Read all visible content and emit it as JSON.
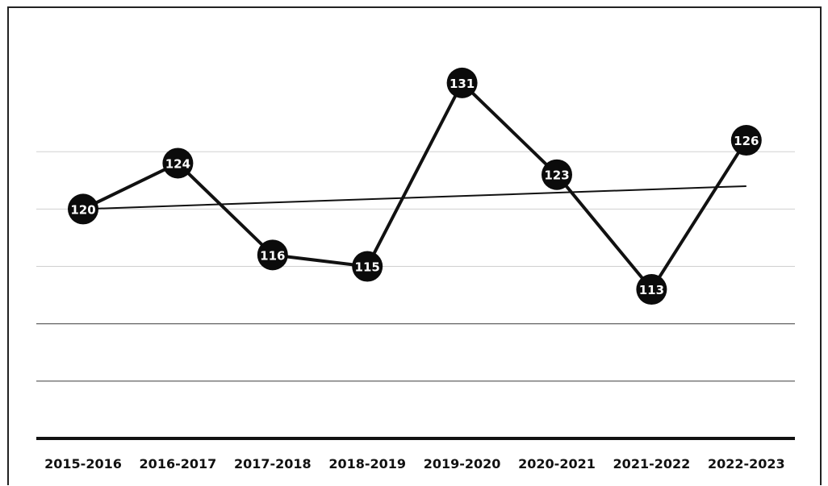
{
  "chart_data": {
    "type": "line",
    "categories": [
      "2015-2016",
      "2016-2017",
      "2017-2018",
      "2018-2019",
      "2019-2020",
      "2020-2021",
      "2021-2022",
      "2022-2023"
    ],
    "series": [
      {
        "values": [
          120,
          124,
          116,
          115,
          131,
          123,
          113,
          126
        ],
        "data_labels": [
          "120",
          "124",
          "116",
          "115",
          "131",
          "123",
          "113",
          "126"
        ]
      }
    ],
    "trendline": {
      "type": "linear",
      "visible": true
    },
    "title": "",
    "xlabel": "",
    "ylabel": "",
    "ylim": [
      100,
      135
    ],
    "gridlines": [
      105,
      110,
      115,
      120,
      125
    ],
    "grid": true,
    "legend": "none",
    "colors": {
      "series": "#111111",
      "marker": "#0b0b0b",
      "label": "#ffffff",
      "grid": "#d0d0d0"
    }
  }
}
